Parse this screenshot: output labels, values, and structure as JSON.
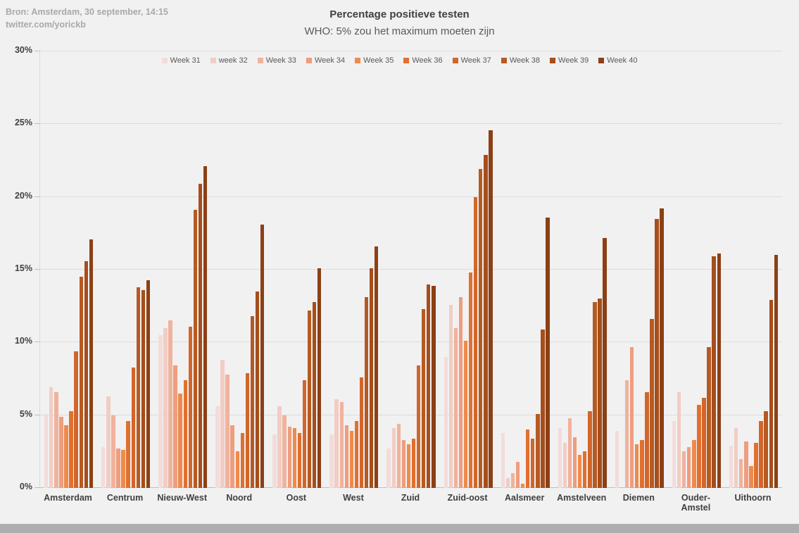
{
  "source": {
    "line1": "Bron: Amsterdam, 30 september, 14:15",
    "line2": "twitter.com/yorickb"
  },
  "chart_data": {
    "type": "bar",
    "title": "Percentage positieve testen",
    "subtitle": "WHO: 5% zou het maximum moeten zijn",
    "categories": [
      "Amsterdam",
      "Centrum",
      "Nieuw-West",
      "Noord",
      "Oost",
      "West",
      "Zuid",
      "Zuid-oost",
      "Aalsmeer",
      "Amstelveen",
      "Diemen",
      "Ouder-Amstel",
      "Uithoorn"
    ],
    "series": [
      {
        "name": "Week 31",
        "color": "#f2dcda",
        "values": [
          5.1,
          2.8,
          10.5,
          5.6,
          3.7,
          3.7,
          2.7,
          9.0,
          3.8,
          4.1,
          3.9,
          4.6,
          2.9
        ]
      },
      {
        "name": "week 32",
        "color": "#f1cdc4",
        "values": [
          6.9,
          6.3,
          11.0,
          8.8,
          5.6,
          6.1,
          4.1,
          12.6,
          0.7,
          3.1,
          0,
          6.6,
          4.1
        ]
      },
      {
        "name": "Week 33",
        "color": "#f0b29c",
        "values": [
          6.6,
          5.0,
          11.5,
          7.8,
          5.0,
          5.9,
          4.4,
          11.0,
          1.0,
          4.8,
          7.4,
          2.5,
          2.0
        ]
      },
      {
        "name": "Week 34",
        "color": "#ee9d7e",
        "values": [
          4.9,
          2.7,
          8.4,
          4.3,
          4.2,
          4.3,
          3.3,
          13.1,
          1.8,
          3.5,
          9.7,
          2.8,
          3.2
        ]
      },
      {
        "name": "Week 35",
        "color": "#ee8a4b",
        "values": [
          4.3,
          2.6,
          6.5,
          2.5,
          4.1,
          3.9,
          3.0,
          10.1,
          0.3,
          2.3,
          3.0,
          3.3,
          1.5
        ]
      },
      {
        "name": "Week 36",
        "color": "#e0702f",
        "values": [
          5.3,
          4.6,
          7.4,
          3.8,
          3.8,
          4.6,
          3.4,
          14.8,
          4.0,
          2.5,
          3.3,
          5.7,
          3.1
        ]
      },
      {
        "name": "Week 37",
        "color": "#d2662a",
        "values": [
          9.4,
          8.3,
          11.1,
          7.9,
          7.4,
          7.6,
          8.4,
          20.0,
          3.4,
          5.3,
          6.6,
          6.2,
          4.6
        ]
      },
      {
        "name": "Week 38",
        "color": "#b55a22",
        "values": [
          14.5,
          13.8,
          19.1,
          11.8,
          12.2,
          13.1,
          12.3,
          21.9,
          5.1,
          12.8,
          11.6,
          9.7,
          5.3
        ]
      },
      {
        "name": "Week 39",
        "color": "#a64e1b",
        "values": [
          15.6,
          13.6,
          20.9,
          13.5,
          12.8,
          15.1,
          14.0,
          22.9,
          10.9,
          13.0,
          18.5,
          15.9,
          12.9
        ]
      },
      {
        "name": "Week 40",
        "color": "#8c4014",
        "values": [
          17.1,
          14.3,
          22.1,
          18.1,
          15.1,
          16.6,
          13.9,
          24.6,
          18.6,
          17.2,
          19.2,
          16.1,
          16.0
        ]
      }
    ],
    "ylim": [
      0,
      30
    ],
    "yticks": [
      "0%",
      "5%",
      "10%",
      "15%",
      "20%",
      "25%",
      "30%"
    ],
    "grid": true,
    "legend_position": "top"
  }
}
